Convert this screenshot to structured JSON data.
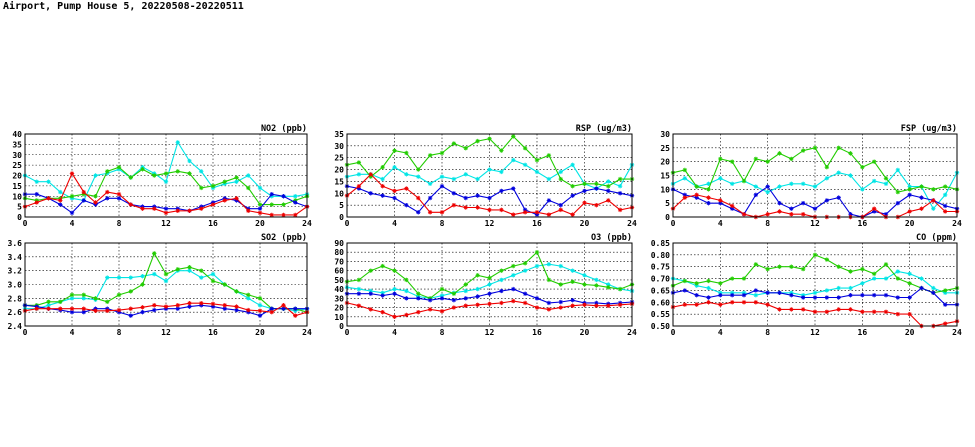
{
  "page_title": "Airport, Pump House 5, 20220508-20220511",
  "series_colors": [
    "#00e5e5",
    "#22cc00",
    "#0000dd",
    "#ee0000"
  ],
  "chart_data": [
    {
      "type": "line",
      "title": "NO2 (ppb)",
      "xlim": [
        0,
        24
      ],
      "ylim": [
        0,
        40
      ],
      "xticks": [
        0,
        4,
        8,
        12,
        16,
        20,
        24
      ],
      "yticks": [
        0,
        5,
        10,
        15,
        20,
        25,
        30,
        35,
        40
      ],
      "x": [
        0,
        1,
        2,
        3,
        4,
        5,
        6,
        7,
        8,
        9,
        10,
        11,
        12,
        13,
        14,
        15,
        16,
        17,
        18,
        19,
        20,
        21,
        22,
        23,
        24
      ],
      "series": [
        {
          "name": "cyan",
          "values": [
            20,
            17,
            17,
            12,
            9,
            8,
            20,
            21,
            23,
            19,
            24,
            21,
            17,
            36,
            27,
            22,
            14,
            16,
            17,
            20,
            14,
            10,
            10,
            10,
            11
          ]
        },
        {
          "name": "green",
          "values": [
            9,
            8,
            9,
            9,
            10,
            11,
            10,
            22,
            24,
            19,
            23,
            20,
            21,
            22,
            21,
            14,
            15,
            17,
            19,
            14,
            6,
            6,
            6,
            8,
            10
          ]
        },
        {
          "name": "blue",
          "values": [
            11,
            11,
            9,
            6,
            2,
            8,
            6,
            9,
            9,
            6,
            5,
            5,
            4,
            4,
            3,
            5,
            7,
            9,
            8,
            4,
            4,
            11,
            10,
            7,
            5
          ]
        },
        {
          "name": "red",
          "values": [
            5,
            7,
            9,
            8,
            21,
            12,
            7,
            12,
            11,
            6,
            4,
            4,
            2,
            3,
            3,
            4,
            6,
            8,
            9,
            3,
            2,
            1,
            1,
            1,
            5
          ]
        }
      ]
    },
    {
      "type": "line",
      "title": "RSP (ug/m3)",
      "xlim": [
        0,
        24
      ],
      "ylim": [
        0,
        35
      ],
      "xticks": [
        0,
        4,
        8,
        12,
        16,
        20,
        24
      ],
      "yticks": [
        0,
        5,
        10,
        15,
        20,
        25,
        30,
        35
      ],
      "x": [
        0,
        1,
        2,
        3,
        4,
        5,
        6,
        7,
        8,
        9,
        10,
        11,
        12,
        13,
        14,
        15,
        16,
        17,
        18,
        19,
        20,
        21,
        22,
        23,
        24
      ],
      "series": [
        {
          "name": "cyan",
          "values": [
            17,
            18,
            18,
            16,
            21,
            18,
            17,
            14,
            17,
            16,
            18,
            16,
            20,
            19,
            24,
            22,
            19,
            16,
            19,
            22,
            14,
            12,
            15,
            13,
            22
          ]
        },
        {
          "name": "green",
          "values": [
            22,
            23,
            17,
            21,
            28,
            27,
            20,
            26,
            27,
            31,
            29,
            32,
            33,
            28,
            34,
            29,
            24,
            26,
            16,
            13,
            14,
            14,
            13,
            16,
            16
          ]
        },
        {
          "name": "blue",
          "values": [
            13,
            12,
            10,
            9,
            8,
            5,
            2,
            8,
            13,
            10,
            8,
            9,
            8,
            11,
            12,
            3,
            1,
            7,
            5,
            9,
            11,
            12,
            11,
            10,
            9
          ]
        },
        {
          "name": "red",
          "values": [
            9,
            13,
            18,
            13,
            11,
            12,
            8,
            2,
            2,
            5,
            4,
            4,
            3,
            3,
            1,
            2,
            2,
            1,
            3,
            1,
            6,
            5,
            7,
            3,
            4
          ]
        }
      ]
    },
    {
      "type": "line",
      "title": "FSP (ug/m3)",
      "xlim": [
        0,
        24
      ],
      "ylim": [
        0,
        30
      ],
      "xticks": [
        0,
        4,
        8,
        12,
        16,
        20,
        24
      ],
      "yticks": [
        0,
        5,
        10,
        15,
        20,
        25,
        30
      ],
      "x": [
        0,
        1,
        2,
        3,
        4,
        5,
        6,
        7,
        8,
        9,
        10,
        11,
        12,
        13,
        14,
        15,
        16,
        17,
        18,
        19,
        20,
        21,
        22,
        23,
        24
      ],
      "series": [
        {
          "name": "cyan",
          "values": [
            12,
            14,
            11,
            12,
            14,
            12,
            13,
            11,
            9,
            11,
            12,
            12,
            11,
            14,
            16,
            15,
            10,
            13,
            12,
            17,
            11,
            11,
            3,
            8,
            16
          ]
        },
        {
          "name": "green",
          "values": [
            16,
            17,
            11,
            10,
            21,
            20,
            13,
            21,
            20,
            23,
            21,
            24,
            25,
            18,
            25,
            23,
            18,
            20,
            14,
            9,
            10,
            11,
            10,
            11,
            10
          ]
        },
        {
          "name": "blue",
          "values": [
            10,
            8,
            7,
            5,
            5,
            3,
            1,
            8,
            11,
            5,
            3,
            5,
            3,
            6,
            7,
            1,
            0,
            2,
            1,
            5,
            8,
            7,
            6,
            4,
            3
          ]
        },
        {
          "name": "red",
          "values": [
            3,
            7,
            8,
            7,
            6,
            4,
            1,
            0,
            1,
            2,
            1,
            1,
            0,
            0,
            0,
            0,
            0,
            3,
            0,
            0,
            2,
            3,
            6,
            2,
            2
          ]
        }
      ]
    },
    {
      "type": "line",
      "title": "SO2 (ppb)",
      "xlim": [
        0,
        24
      ],
      "ylim": [
        2.4,
        3.6
      ],
      "xticks": [
        0,
        4,
        8,
        12,
        16,
        20,
        24
      ],
      "yticks": [
        2.4,
        2.6,
        2.8,
        3.0,
        3.2,
        3.4,
        3.6
      ],
      "x": [
        0,
        1,
        2,
        3,
        4,
        5,
        6,
        7,
        8,
        9,
        10,
        11,
        12,
        13,
        14,
        15,
        16,
        17,
        18,
        19,
        20,
        21,
        22,
        23,
        24
      ],
      "series": [
        {
          "name": "cyan",
          "values": [
            2.65,
            2.65,
            2.7,
            2.75,
            2.8,
            2.8,
            2.78,
            3.1,
            3.1,
            3.1,
            3.12,
            3.15,
            3.05,
            3.2,
            3.2,
            3.1,
            3.15,
            3.0,
            2.9,
            2.8,
            2.7,
            2.65,
            2.65,
            2.62,
            2.65
          ]
        },
        {
          "name": "green",
          "values": [
            2.7,
            2.7,
            2.75,
            2.75,
            2.85,
            2.85,
            2.8,
            2.75,
            2.85,
            2.9,
            3.0,
            3.45,
            3.15,
            3.22,
            3.25,
            3.2,
            3.05,
            3.0,
            2.9,
            2.85,
            2.8,
            2.65,
            2.65,
            2.65,
            2.6
          ]
        },
        {
          "name": "blue",
          "values": [
            2.7,
            2.68,
            2.65,
            2.63,
            2.6,
            2.6,
            2.65,
            2.65,
            2.6,
            2.55,
            2.6,
            2.63,
            2.65,
            2.65,
            2.68,
            2.7,
            2.68,
            2.65,
            2.63,
            2.6,
            2.55,
            2.65,
            2.65,
            2.65,
            2.65
          ]
        },
        {
          "name": "red",
          "values": [
            2.62,
            2.65,
            2.65,
            2.65,
            2.65,
            2.65,
            2.62,
            2.62,
            2.63,
            2.65,
            2.67,
            2.7,
            2.68,
            2.7,
            2.73,
            2.73,
            2.72,
            2.7,
            2.68,
            2.63,
            2.62,
            2.6,
            2.7,
            2.55,
            2.6
          ]
        }
      ]
    },
    {
      "type": "line",
      "title": "O3 (ppb)",
      "xlim": [
        0,
        24
      ],
      "ylim": [
        0,
        90
      ],
      "xticks": [
        0,
        4,
        8,
        12,
        16,
        20,
        24
      ],
      "yticks": [
        0,
        10,
        20,
        30,
        40,
        50,
        60,
        70,
        80,
        90
      ],
      "x": [
        0,
        1,
        2,
        3,
        4,
        5,
        6,
        7,
        8,
        9,
        10,
        11,
        12,
        13,
        14,
        15,
        16,
        17,
        18,
        19,
        20,
        21,
        22,
        23,
        24
      ],
      "series": [
        {
          "name": "cyan",
          "values": [
            42,
            40,
            38,
            36,
            40,
            38,
            32,
            30,
            33,
            36,
            38,
            40,
            45,
            50,
            55,
            60,
            65,
            67,
            65,
            60,
            55,
            50,
            45,
            40,
            38
          ]
        },
        {
          "name": "green",
          "values": [
            48,
            50,
            60,
            65,
            60,
            50,
            35,
            30,
            40,
            35,
            45,
            55,
            52,
            60,
            65,
            68,
            80,
            50,
            45,
            48,
            45,
            44,
            42,
            40,
            45
          ]
        },
        {
          "name": "blue",
          "values": [
            35,
            35,
            35,
            33,
            35,
            30,
            30,
            28,
            30,
            28,
            30,
            32,
            35,
            38,
            40,
            35,
            30,
            25,
            26,
            28,
            25,
            25,
            24,
            25,
            26
          ]
        },
        {
          "name": "red",
          "values": [
            25,
            22,
            18,
            15,
            10,
            12,
            15,
            18,
            16,
            20,
            22,
            23,
            24,
            25,
            27,
            25,
            20,
            18,
            20,
            22,
            23,
            22,
            22,
            23,
            24
          ]
        }
      ]
    },
    {
      "type": "line",
      "title": "CO (ppm)",
      "xlim": [
        0,
        24
      ],
      "ylim": [
        0.5,
        0.85
      ],
      "xticks": [
        0,
        4,
        8,
        12,
        16,
        20,
        24
      ],
      "yticks": [
        0.5,
        0.55,
        0.6,
        0.65,
        0.7,
        0.75,
        0.8,
        0.85
      ],
      "x": [
        0,
        1,
        2,
        3,
        4,
        5,
        6,
        7,
        8,
        9,
        10,
        11,
        12,
        13,
        14,
        15,
        16,
        17,
        18,
        19,
        20,
        21,
        22,
        23,
        24
      ],
      "series": [
        {
          "name": "cyan",
          "values": [
            0.7,
            0.69,
            0.67,
            0.66,
            0.64,
            0.64,
            0.64,
            0.63,
            0.64,
            0.64,
            0.64,
            0.63,
            0.64,
            0.65,
            0.66,
            0.66,
            0.68,
            0.7,
            0.7,
            0.73,
            0.72,
            0.7,
            0.66,
            0.64,
            0.64
          ]
        },
        {
          "name": "green",
          "values": [
            0.67,
            0.69,
            0.68,
            0.69,
            0.68,
            0.7,
            0.7,
            0.76,
            0.74,
            0.75,
            0.75,
            0.74,
            0.8,
            0.78,
            0.75,
            0.73,
            0.74,
            0.72,
            0.76,
            0.7,
            0.68,
            0.66,
            0.64,
            0.65,
            0.66
          ]
        },
        {
          "name": "blue",
          "values": [
            0.64,
            0.65,
            0.63,
            0.62,
            0.63,
            0.63,
            0.63,
            0.65,
            0.64,
            0.64,
            0.63,
            0.62,
            0.62,
            0.62,
            0.62,
            0.63,
            0.63,
            0.63,
            0.63,
            0.62,
            0.62,
            0.66,
            0.64,
            0.59,
            0.59
          ]
        },
        {
          "name": "red",
          "values": [
            0.58,
            0.59,
            0.59,
            0.6,
            0.59,
            0.6,
            0.6,
            0.6,
            0.59,
            0.57,
            0.57,
            0.57,
            0.56,
            0.56,
            0.57,
            0.57,
            0.56,
            0.56,
            0.56,
            0.55,
            0.55,
            0.5,
            0.5,
            0.51,
            0.52
          ]
        }
      ]
    }
  ]
}
